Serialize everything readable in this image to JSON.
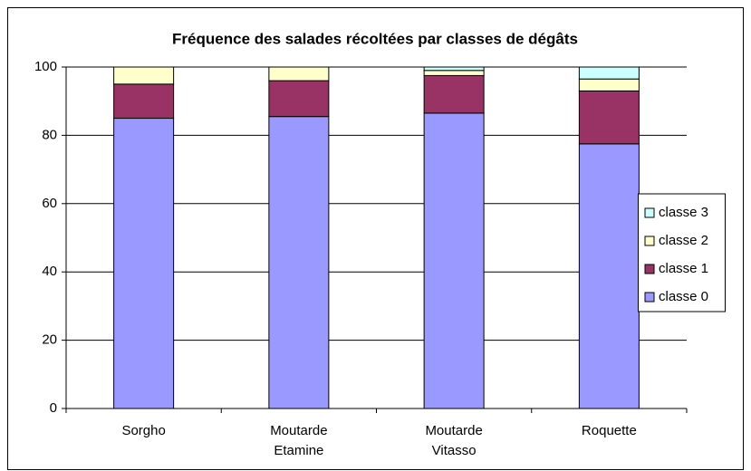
{
  "chart_data": {
    "type": "stacked_bar",
    "title": "Fréquence des salades récoltées par classes de dégâts",
    "categories": [
      "Sorgho",
      "Moutarde Etamine",
      "Moutarde Vitasso",
      "Roquette"
    ],
    "series": [
      {
        "name": "classe 0",
        "color": "#9999ff",
        "values": [
          85,
          85.5,
          86.5,
          77.5
        ]
      },
      {
        "name": "classe 1",
        "color": "#993366",
        "values": [
          10,
          10.5,
          11,
          15.5
        ]
      },
      {
        "name": "classe 2",
        "color": "#ffffcc",
        "values": [
          5,
          4,
          1.5,
          3.5
        ]
      },
      {
        "name": "classe 3",
        "color": "#ccffff",
        "values": [
          0,
          0,
          1,
          3.5
        ]
      }
    ],
    "ylim": [
      0,
      100
    ],
    "yticks": [
      0,
      20,
      40,
      60,
      80,
      100
    ],
    "grid": true,
    "legend": "right"
  }
}
